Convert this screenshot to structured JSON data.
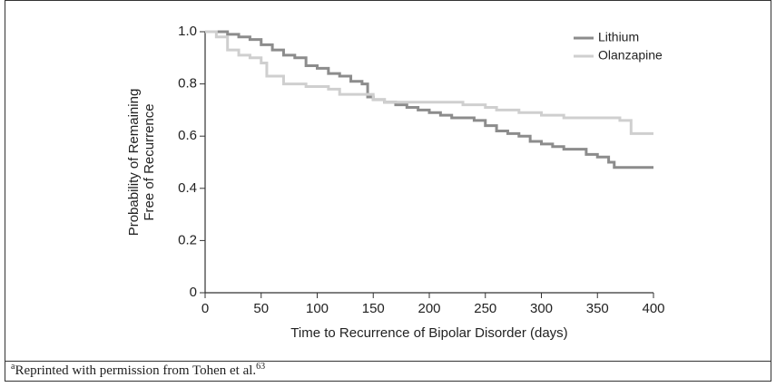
{
  "chart_data": {
    "type": "step-line",
    "x_label": "Time to Recurrence of Bipolar Disorder (days)",
    "y_label": [
      "Probability of Remaining",
      "Free of Recurrence"
    ],
    "xlim": [
      0,
      400
    ],
    "xticks": [
      0,
      50,
      100,
      150,
      200,
      250,
      300,
      350,
      400
    ],
    "ylim": [
      0,
      1
    ],
    "yticks": [
      0,
      0.2,
      0.4,
      0.6,
      0.8,
      {
        "value": 1,
        "label": "1.0"
      }
    ],
    "legend": "top-right",
    "series": [
      {
        "name": "Lithium",
        "color": "#8c8c8c",
        "x": [
          0,
          10,
          20,
          30,
          40,
          50,
          60,
          70,
          80,
          90,
          100,
          110,
          120,
          130,
          140,
          145,
          150,
          160,
          170,
          180,
          190,
          200,
          210,
          220,
          230,
          240,
          250,
          260,
          270,
          280,
          290,
          300,
          310,
          320,
          330,
          340,
          350,
          360,
          365,
          400
        ],
        "values": [
          1.0,
          1.0,
          0.99,
          0.98,
          0.97,
          0.95,
          0.93,
          0.91,
          0.9,
          0.87,
          0.86,
          0.84,
          0.83,
          0.81,
          0.8,
          0.75,
          0.74,
          0.73,
          0.72,
          0.71,
          0.7,
          0.69,
          0.68,
          0.67,
          0.67,
          0.66,
          0.64,
          0.62,
          0.61,
          0.6,
          0.58,
          0.57,
          0.56,
          0.55,
          0.55,
          0.53,
          0.52,
          0.5,
          0.48,
          0.48
        ]
      },
      {
        "name": "Olanzapine",
        "color": "#cfcfcf",
        "x": [
          0,
          10,
          20,
          30,
          40,
          50,
          55,
          70,
          90,
          110,
          120,
          150,
          160,
          200,
          230,
          250,
          260,
          280,
          300,
          320,
          360,
          370,
          380,
          400
        ],
        "values": [
          1.0,
          0.98,
          0.93,
          0.91,
          0.9,
          0.88,
          0.83,
          0.8,
          0.79,
          0.78,
          0.76,
          0.74,
          0.73,
          0.73,
          0.72,
          0.71,
          0.7,
          0.69,
          0.68,
          0.67,
          0.67,
          0.66,
          0.61,
          0.61
        ]
      }
    ],
    "footnote": {
      "mark": "a",
      "text": "Reprinted with permission from Tohen et al.",
      "ref": "63"
    }
  }
}
